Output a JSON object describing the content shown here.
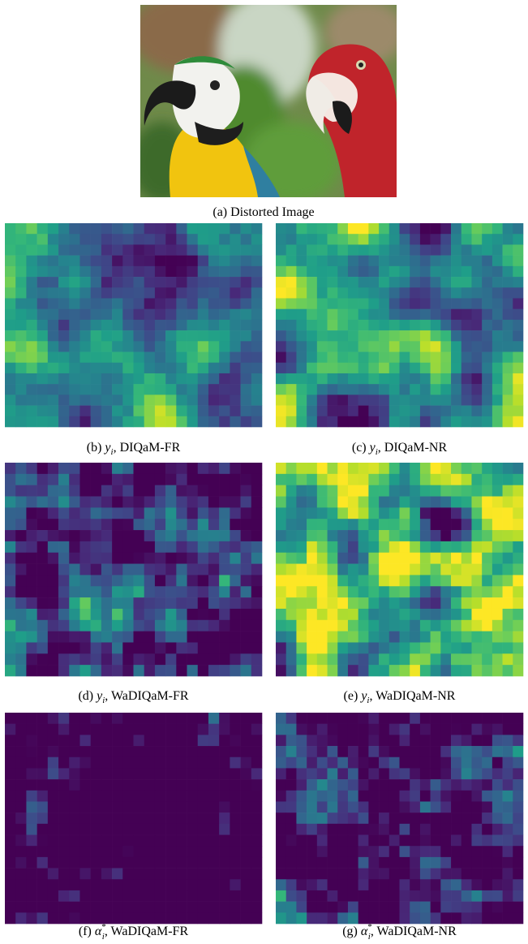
{
  "figure": {
    "photo_caption": "(a) Distorted Image",
    "panels": [
      {
        "prefix": "(b)",
        "symbol": "y",
        "subscript": "i",
        "suffix": ", DIQaM-FR"
      },
      {
        "prefix": "(c)",
        "symbol": "y",
        "subscript": "i",
        "suffix": ", DIQaM-NR"
      },
      {
        "prefix": "(d)",
        "symbol": "y",
        "subscript": "i",
        "suffix": ", WaDIQaM-FR"
      },
      {
        "prefix": "(e)",
        "symbol": "y",
        "subscript": "i",
        "suffix": ", WaDIQaM-NR"
      },
      {
        "prefix": "(f)",
        "symbol": "α",
        "subscript": "i",
        "superscript": "*",
        "suffix": ", WaDIQaM-FR"
      },
      {
        "prefix": "(g)",
        "symbol": "α",
        "subscript": "i",
        "superscript": "*",
        "suffix": ", WaDIQaM-NR"
      }
    ]
  }
}
